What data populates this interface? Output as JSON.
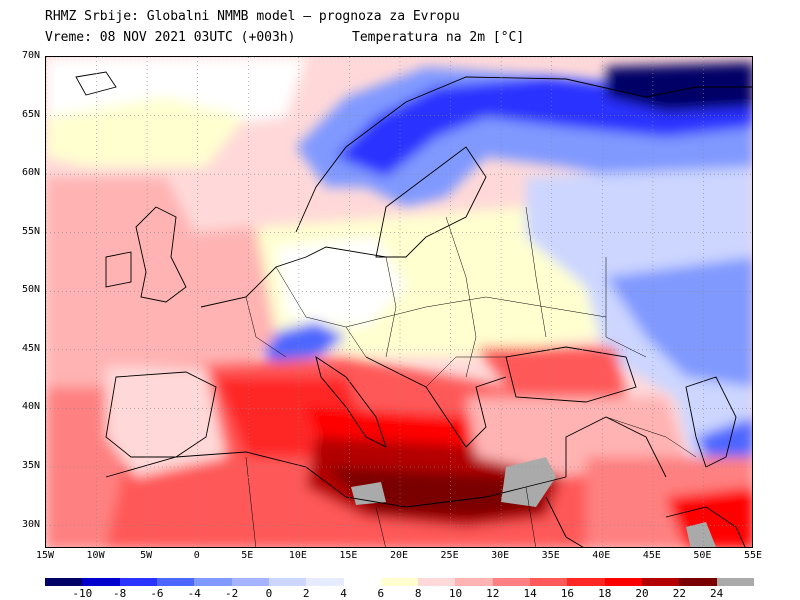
{
  "header": {
    "line1": "RHMZ Srbije: Globalni NMMB model — prognoza za Evropu",
    "line2_left": "Vreme: 08 NOV 2021 03UTC (+003h)",
    "line2_right": "Temperatura na 2m [°C]"
  },
  "map": {
    "lat_labels": [
      "70N",
      "65N",
      "60N",
      "55N",
      "50N",
      "45N",
      "40N",
      "35N",
      "30N"
    ],
    "lon_labels": [
      "15W",
      "10W",
      "5W",
      "0",
      "5E",
      "10E",
      "15E",
      "20E",
      "25E",
      "30E",
      "35E",
      "40E",
      "45E",
      "50E",
      "55E"
    ],
    "lon_range": [
      -15,
      55
    ],
    "lat_range": [
      28,
      70
    ],
    "grid": true
  },
  "legend": {
    "labels": [
      "-10",
      "-8",
      "-6",
      "-4",
      "-2",
      "0",
      "2",
      "4",
      "6",
      "8",
      "10",
      "12",
      "14",
      "16",
      "18",
      "20",
      "22",
      "24"
    ],
    "colors": [
      "#000066",
      "#0000cc",
      "#2a33ff",
      "#4d66ff",
      "#8099ff",
      "#a6b3ff",
      "#ccd6ff",
      "#e6ebff",
      "#ffffff",
      "#ffffd0",
      "#ffd9d9",
      "#ffb3b3",
      "#ff8080",
      "#ff5959",
      "#ff2626",
      "#ff0000",
      "#b30000",
      "#7a0000",
      "#aaaaaa"
    ]
  }
}
